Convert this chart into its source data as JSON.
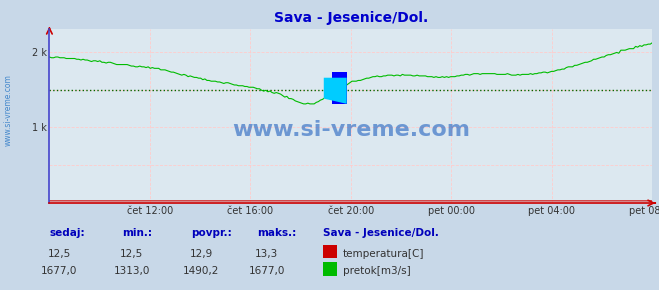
{
  "title": "Sava - Jesenice/Dol.",
  "bg_color": "#c8d8e8",
  "plot_bg_color": "#dce8f0",
  "title_color": "#0000cc",
  "axis_color": "#cc0000",
  "y_axis_color": "#4444cc",
  "grid_color": "#ffcccc",
  "flow_color": "#00bb00",
  "temp_color": "#cc0000",
  "avg_line_color": "#006600",
  "x_tick_labels": [
    "čet 12:00",
    "čet 16:00",
    "čet 20:00",
    "pet 00:00",
    "pet 04:00",
    "pet 08:00"
  ],
  "x_tick_positions": [
    0.1667,
    0.3333,
    0.5,
    0.6667,
    0.8333,
    1.0
  ],
  "y_tick_vals": [
    1000,
    2000
  ],
  "y_tick_labels": [
    "1 k",
    "2 k"
  ],
  "ylim": [
    0,
    2300
  ],
  "flow_avg": 1490.2,
  "flow_min": 1313.0,
  "flow_max": 1677.0,
  "flow_current": 1677.0,
  "temp_current": 12.5,
  "temp_min": 12.5,
  "temp_avg": 12.9,
  "temp_max": 13.3,
  "watermark": "www.si-vreme.com",
  "watermark_color": "#1155bb",
  "label_color": "#0000bb",
  "value_color": "#333333",
  "label_sedaj": "sedaj:",
  "label_min": "min.:",
  "label_povpr": "povpr.:",
  "label_maks": "maks.:",
  "label_station": "Sava - Jesenice/Dol.",
  "label_temp": "temperatura[C]",
  "label_flow": "pretok[m3/s]",
  "n_points": 288,
  "sidebar_text": "www.si-vreme.com",
  "sidebar_color": "#4488cc"
}
